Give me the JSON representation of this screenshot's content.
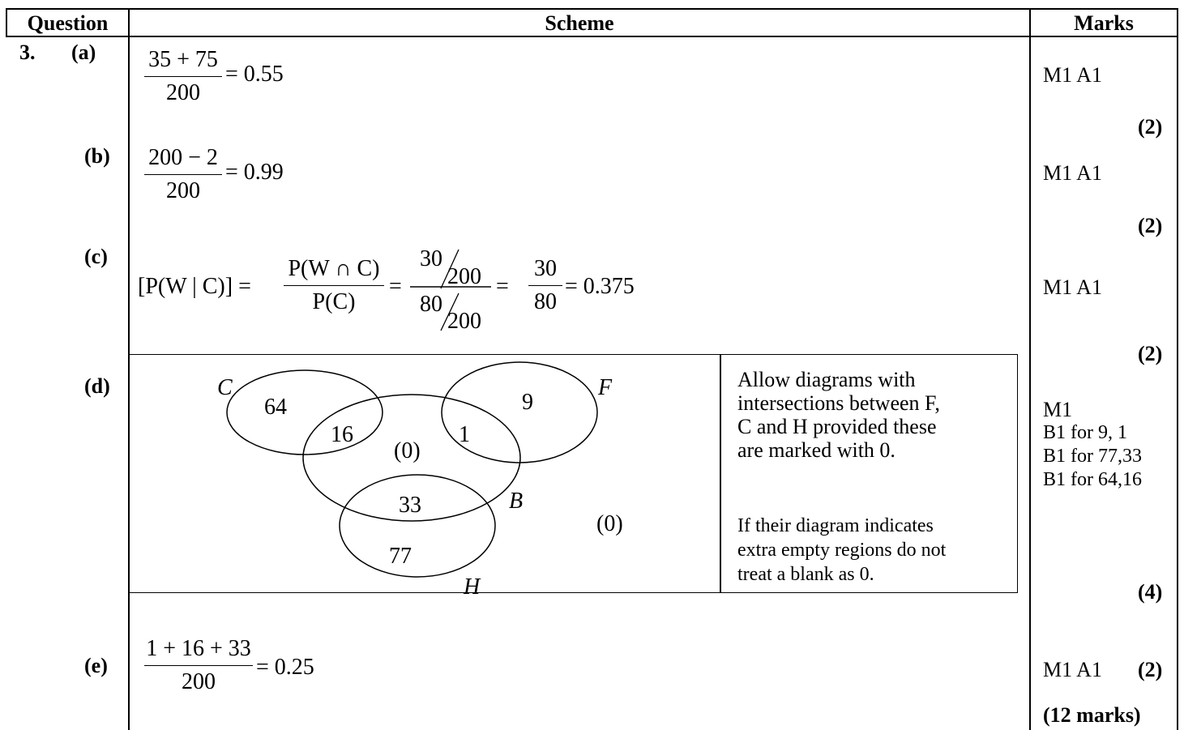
{
  "header": {
    "question": "Question",
    "scheme": "Scheme",
    "marks": "Marks"
  },
  "question_number": "3.",
  "parts": {
    "a": {
      "label": "(a)",
      "num": "35 + 75",
      "den": "200",
      "result": "= 0.55",
      "marks": "M1 A1",
      "total": "(2)"
    },
    "b": {
      "label": "(b)",
      "num": "200 − 2",
      "den": "200",
      "result": "= 0.99",
      "marks": "M1 A1",
      "total": "(2)"
    },
    "c": {
      "label": "(c)",
      "lhs": "[P(W | C)] =",
      "f1_num": "P(W ∩ C)",
      "f1_den": "P(C)",
      "eq1": "=",
      "f2_num_a": "30",
      "f2_num_b": "200",
      "f2_den_a": "80",
      "f2_den_b": "200",
      "eq2": "=",
      "f3_num": "30",
      "f3_den": "80",
      "result": "= 0.375",
      "marks": "M1 A1",
      "total": "(2)"
    },
    "d": {
      "label": "(d)",
      "venn": {
        "labels": {
          "C": "C",
          "F": "F",
          "B": "B",
          "H": "H"
        },
        "values": {
          "c_only": "64",
          "c_b": "16",
          "b_only": "(0)",
          "f_b": "1",
          "f_only": "9",
          "b_h": "33",
          "h_only": "77",
          "outside": "(0)"
        }
      },
      "note1": [
        "Allow diagrams with",
        "intersections between F,",
        "C and H provided these",
        "are marked with 0."
      ],
      "note2": [
        "If their diagram indicates",
        "extra empty regions do not",
        "treat a blank as 0."
      ],
      "marks": [
        "M1",
        "B1 for 9, 1",
        "B1 for 77,33",
        "B1 for 64,16"
      ],
      "total": "(4)"
    },
    "e": {
      "label": "(e)",
      "num": "1 + 16 + 33",
      "den": "200",
      "result": "= 0.25",
      "marks": "M1 A1",
      "total": "(2)"
    }
  },
  "grand_total": "(12 marks)"
}
